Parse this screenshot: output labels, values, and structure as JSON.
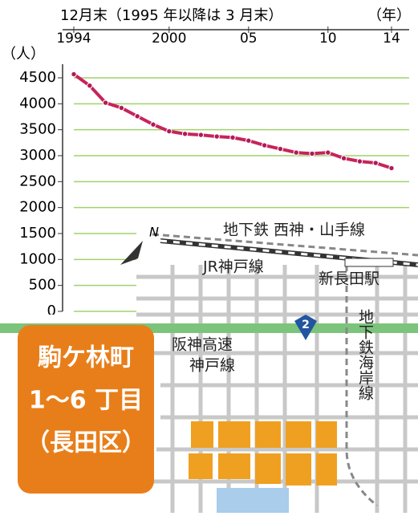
{
  "chart_data": {
    "type": "line",
    "title": "12月末（1995 年以降は 3 月末）",
    "x_unit": "（年）",
    "y_unit": "（人）",
    "x": [
      1994,
      1995,
      1996,
      1997,
      1998,
      1999,
      2000,
      2001,
      2002,
      2003,
      2004,
      2005,
      2006,
      2007,
      2008,
      2009,
      2010,
      2011,
      2012,
      2013,
      2014
    ],
    "series": [
      {
        "color": "#c8235a",
        "values": [
          4570,
          4350,
          4020,
          3920,
          3760,
          3600,
          3470,
          3420,
          3400,
          3370,
          3350,
          3290,
          3200,
          3130,
          3060,
          3040,
          3060,
          2950,
          2890,
          2860,
          2760
        ]
      }
    ],
    "xlim": [
      1994,
      2014
    ],
    "xticks": [
      1994,
      2000,
      {
        "value": 2005,
        "label": "05"
      },
      {
        "value": 2010,
        "label": "10"
      },
      {
        "value": 2014,
        "label": "14"
      }
    ],
    "ylim": [
      0,
      4500
    ],
    "yticks": [
      0,
      500,
      1000,
      1500,
      2000,
      2500,
      3000,
      3500,
      4000,
      4500
    ],
    "grid": true,
    "grid_color": "#9fd36a"
  },
  "map": {
    "north": "N",
    "subway_line": "地下鉄 西神・山手線",
    "jr_line": "JR神戸線",
    "station": "新長田駅",
    "route_number": "2",
    "highway_1": "阪神高速",
    "highway_2": "神戸線",
    "coast_line": "地下鉄海岸線",
    "area_name": "駒ケ林町",
    "area_blocks": "1～6 丁目",
    "area_ward": "（長田区）"
  }
}
